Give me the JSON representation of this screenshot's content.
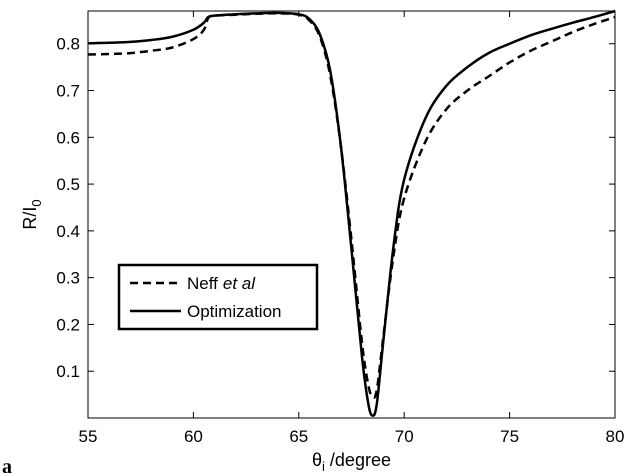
{
  "chart_data": {
    "type": "line",
    "xlabel": {
      "symbol": "θ",
      "sub": "i",
      "rest": " /degree"
    },
    "ylabel": {
      "main": "R/I",
      "sub": "0"
    },
    "xlim": [
      55,
      80
    ],
    "ylim": [
      0,
      0.87
    ],
    "xticks": [
      55,
      60,
      65,
      70,
      75,
      80
    ],
    "yticks": [
      0.1,
      0.2,
      0.3,
      0.4,
      0.5,
      0.6,
      0.7,
      0.8
    ],
    "grid": false,
    "legend_position": "lower-left",
    "panel_label": "a",
    "series": [
      {
        "name": "Neff",
        "name_suffix": "et al",
        "style": "dashed",
        "x": [
          55,
          56,
          57,
          58,
          59,
          60,
          60.5,
          60.7,
          61,
          62,
          63,
          64,
          65,
          65.5,
          66,
          66.5,
          67,
          67.5,
          68,
          68.3,
          68.5,
          68.7,
          69,
          69.5,
          70,
          71,
          72,
          73,
          74,
          75,
          76,
          77,
          78,
          79,
          80
        ],
        "y": [
          0.777,
          0.778,
          0.78,
          0.785,
          0.792,
          0.81,
          0.83,
          0.855,
          0.86,
          0.862,
          0.864,
          0.865,
          0.862,
          0.85,
          0.815,
          0.73,
          0.58,
          0.38,
          0.16,
          0.07,
          0.045,
          0.06,
          0.17,
          0.35,
          0.47,
          0.59,
          0.66,
          0.7,
          0.73,
          0.76,
          0.785,
          0.805,
          0.825,
          0.842,
          0.857
        ]
      },
      {
        "name": "Optimization",
        "style": "solid",
        "x": [
          55,
          56,
          57,
          58,
          59,
          60,
          60.5,
          60.7,
          61,
          62,
          63,
          64,
          65,
          65.5,
          66,
          66.5,
          67,
          67.5,
          68,
          68.3,
          68.5,
          68.7,
          69,
          69.5,
          70,
          71,
          72,
          73,
          74,
          75,
          76,
          77,
          78,
          79,
          80
        ],
        "y": [
          0.801,
          0.802,
          0.804,
          0.808,
          0.815,
          0.83,
          0.845,
          0.857,
          0.86,
          0.863,
          0.865,
          0.866,
          0.863,
          0.853,
          0.82,
          0.74,
          0.58,
          0.36,
          0.13,
          0.03,
          0.005,
          0.03,
          0.16,
          0.37,
          0.51,
          0.64,
          0.71,
          0.75,
          0.78,
          0.8,
          0.818,
          0.832,
          0.845,
          0.857,
          0.87
        ]
      }
    ]
  }
}
